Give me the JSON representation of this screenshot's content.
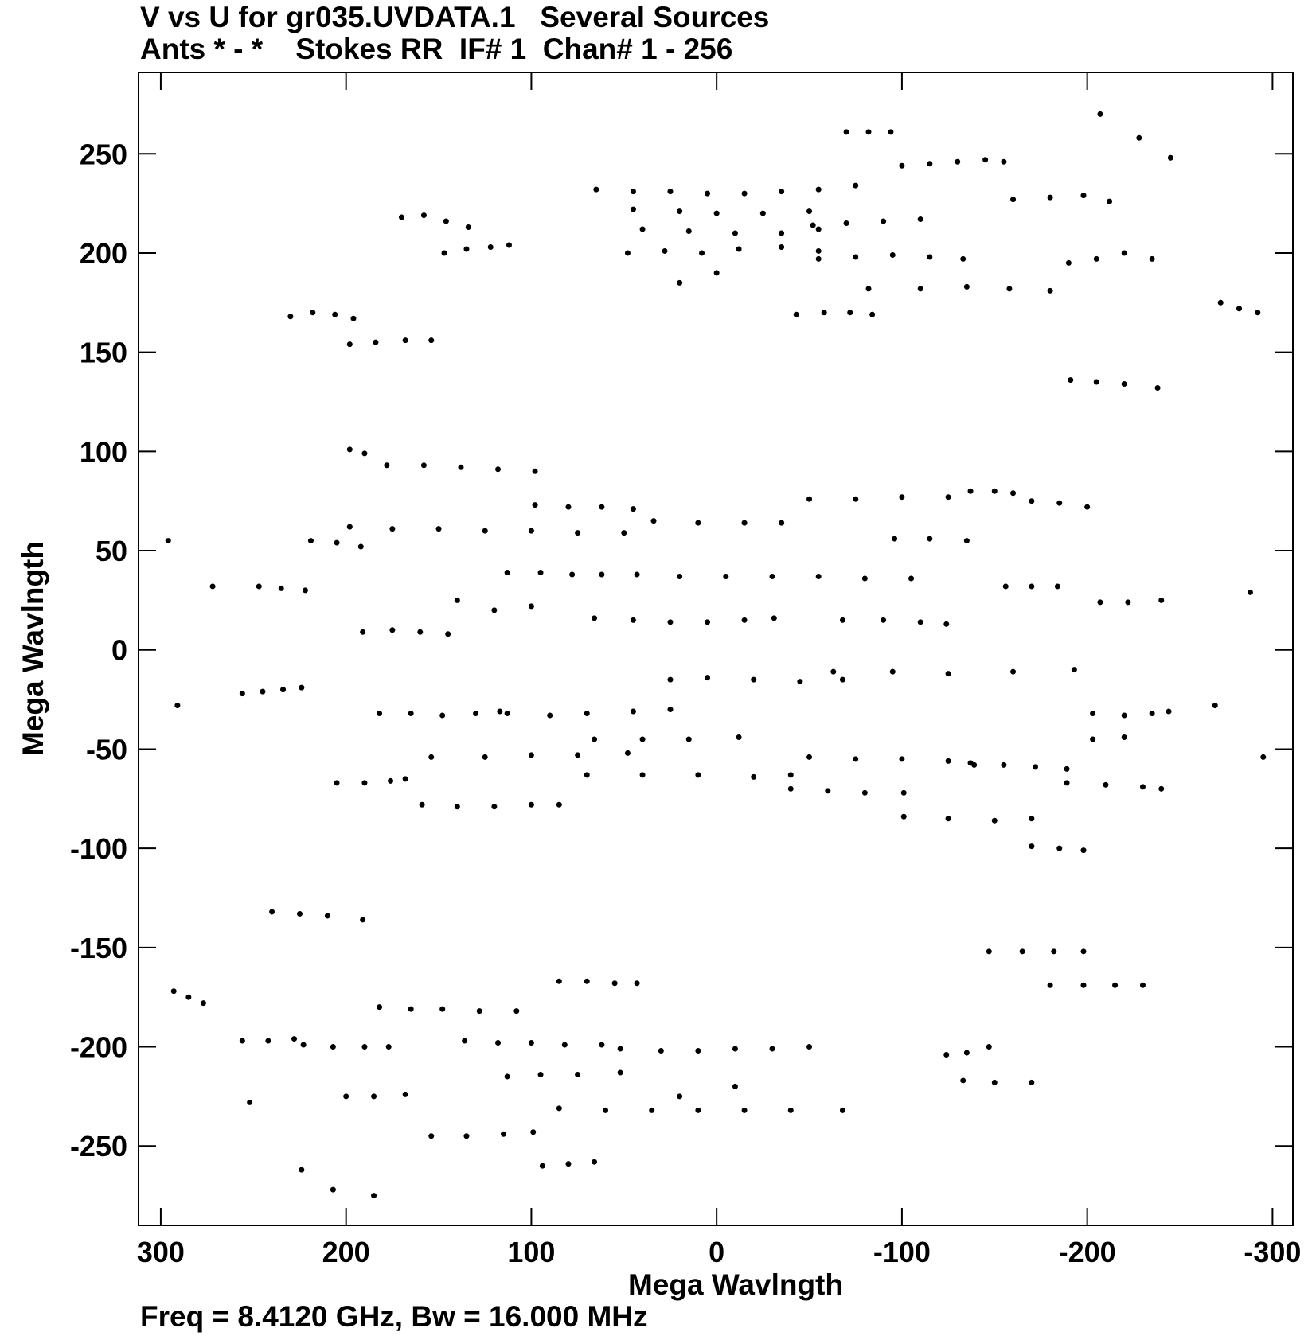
{
  "chart_data": {
    "type": "scatter",
    "title": "V vs U for gr035.UVDATA.1   Several Sources",
    "subtitle": "Ants * - *    Stokes RR  IF# 1  Chan# 1 - 256",
    "xlabel": "Mega Wavlngth",
    "ylabel": "Mega Wavlngth",
    "footer": "Freq = 8.4120 GHz, Bw = 16.000 MHz",
    "color": "#000000",
    "xlim": [
      312,
      -311
    ],
    "ylim": [
      -290,
      291
    ],
    "xticks": [
      300,
      200,
      100,
      0,
      -100,
      -200,
      -300
    ],
    "yticks": [
      -250,
      -200,
      -150,
      -100,
      -50,
      0,
      50,
      100,
      150,
      200,
      250
    ],
    "x": [
      -70,
      -82,
      -94,
      -100,
      -115,
      -130,
      -145,
      -155,
      65,
      45,
      25,
      5,
      -15,
      -35,
      -55,
      -75,
      45,
      20,
      0,
      -25,
      -50,
      40,
      15,
      -10,
      -35,
      -55,
      170,
      158,
      146,
      134,
      -52,
      -70,
      -90,
      -110,
      48,
      28,
      8,
      -12,
      -35,
      -55,
      147,
      135,
      122,
      112,
      -55,
      -75,
      -95,
      -115,
      -133,
      -160,
      -180,
      -198,
      -212,
      -190,
      -205,
      -220,
      -235,
      -82,
      -110,
      -135,
      -158,
      -180,
      -43,
      -58,
      -72,
      -84,
      230,
      218,
      206,
      196,
      198,
      184,
      168,
      154,
      -191,
      -205,
      -220,
      -238,
      -272,
      -282,
      -292,
      -207,
      -228,
      -245,
      20,
      0,
      198,
      190,
      178,
      158,
      138,
      118,
      98,
      198,
      175,
      150,
      125,
      100,
      75,
      50,
      98,
      80,
      62,
      45,
      34,
      10,
      -15,
      -35,
      -50,
      -75,
      -100,
      -125,
      -137,
      -150,
      -160,
      -170,
      -185,
      -200,
      -96,
      -115,
      -135,
      113,
      95,
      78,
      62,
      43,
      20,
      -5,
      -30,
      -55,
      -80,
      -105,
      -156,
      -170,
      -184,
      247,
      235,
      222,
      219,
      205,
      192,
      191,
      175,
      160,
      145,
      66,
      45,
      25,
      5,
      -15,
      -31,
      -68,
      -90,
      -110,
      -124,
      -207,
      -222,
      -240,
      120,
      100,
      140,
      256,
      245,
      234,
      224,
      182,
      165,
      148,
      130,
      117,
      113,
      90,
      70,
      45,
      25,
      25,
      5,
      -20,
      -45,
      -68,
      -63,
      -95,
      -125,
      -160,
      -193,
      -203,
      -220,
      -235,
      -244,
      154,
      125,
      100,
      75,
      48,
      66,
      40,
      15,
      -12,
      70,
      40,
      10,
      -20,
      -40,
      -40,
      -60,
      -80,
      -101,
      -50,
      -75,
      -100,
      -125,
      -137,
      -139,
      -155,
      -172,
      -189,
      159,
      140,
      120,
      100,
      85,
      205,
      190,
      176,
      168,
      -101,
      -125,
      -150,
      -170,
      -170,
      -185,
      -198,
      -189,
      -210,
      -230,
      -240,
      -203,
      -220,
      296,
      291,
      272,
      -288,
      -269,
      -295,
      240,
      225,
      210,
      191,
      293,
      285,
      277,
      -147,
      -165,
      -182,
      -198,
      -180,
      -198,
      -215,
      -230,
      182,
      165,
      148,
      128,
      108,
      85,
      70,
      55,
      43,
      136,
      118,
      100,
      82,
      62,
      52,
      30,
      10,
      -10,
      -30,
      -50,
      113,
      95,
      75,
      52,
      85,
      60,
      35,
      10,
      -15,
      -40,
      -68,
      223,
      207,
      190,
      177,
      256,
      242,
      228,
      200,
      185,
      168,
      154,
      135,
      115,
      99,
      94,
      80,
      66,
      -124,
      -135,
      -147,
      -133,
      -150,
      -170,
      252,
      224,
      207,
      185,
      20,
      -10
    ],
    "y": [
      261,
      261,
      261,
      244,
      245,
      246,
      247,
      246,
      232,
      231,
      231,
      230,
      230,
      231,
      232,
      234,
      222,
      221,
      220,
      220,
      221,
      212,
      211,
      210,
      210,
      212,
      218,
      219,
      216,
      213,
      214,
      215,
      216,
      217,
      200,
      201,
      200,
      202,
      203,
      201,
      200,
      202,
      203,
      204,
      197,
      198,
      199,
      198,
      197,
      227,
      228,
      229,
      226,
      195,
      197,
      200,
      197,
      182,
      182,
      183,
      182,
      181,
      169,
      170,
      170,
      169,
      168,
      170,
      169,
      167,
      154,
      155,
      156,
      156,
      136,
      135,
      134,
      132,
      175,
      172,
      170,
      270,
      258,
      248,
      185,
      190,
      101,
      99,
      93,
      93,
      92,
      91,
      90,
      62,
      61,
      61,
      60,
      60,
      59,
      59,
      73,
      72,
      72,
      71,
      65,
      64,
      64,
      64,
      76,
      76,
      77,
      77,
      80,
      80,
      79,
      75,
      74,
      72,
      56,
      56,
      55,
      39,
      39,
      38,
      38,
      38,
      37,
      37,
      37,
      37,
      36,
      36,
      32,
      32,
      32,
      32,
      31,
      30,
      55,
      54,
      52,
      9,
      10,
      9,
      8,
      16,
      15,
      14,
      14,
      15,
      16,
      15,
      15,
      14,
      13,
      24,
      24,
      25,
      20,
      22,
      25,
      -22,
      -21,
      -20,
      -19,
      -32,
      -32,
      -33,
      -32,
      -31,
      -32,
      -33,
      -32,
      -31,
      -30,
      -15,
      -14,
      -15,
      -16,
      -15,
      -11,
      -11,
      -12,
      -11,
      -10,
      -32,
      -33,
      -32,
      -31,
      -54,
      -54,
      -53,
      -53,
      -52,
      -45,
      -45,
      -45,
      -44,
      -63,
      -63,
      -63,
      -64,
      -63,
      -70,
      -71,
      -72,
      -72,
      -54,
      -55,
      -55,
      -56,
      -57,
      -58,
      -58,
      -59,
      -60,
      -78,
      -79,
      -79,
      -78,
      -78,
      -67,
      -67,
      -66,
      -65,
      -84,
      -85,
      -86,
      -85,
      -99,
      -100,
      -101,
      -67,
      -68,
      -69,
      -70,
      -45,
      -44,
      55,
      -28,
      32,
      29,
      -28,
      -54,
      -132,
      -133,
      -134,
      -136,
      -172,
      -175,
      -178,
      -152,
      -152,
      -152,
      -152,
      -169,
      -169,
      -169,
      -169,
      -180,
      -181,
      -181,
      -182,
      -182,
      -167,
      -167,
      -168,
      -168,
      -197,
      -198,
      -198,
      -199,
      -199,
      -201,
      -202,
      -202,
      -201,
      -201,
      -200,
      -215,
      -214,
      -214,
      -213,
      -231,
      -232,
      -232,
      -232,
      -232,
      -232,
      -232,
      -199,
      -200,
      -200,
      -200,
      -197,
      -197,
      -196,
      -225,
      -225,
      -224,
      -245,
      -245,
      -244,
      -243,
      -260,
      -259,
      -258,
      -204,
      -203,
      -200,
      -217,
      -218,
      -218,
      -228,
      -262,
      -272,
      -275,
      -225,
      -220
    ]
  }
}
